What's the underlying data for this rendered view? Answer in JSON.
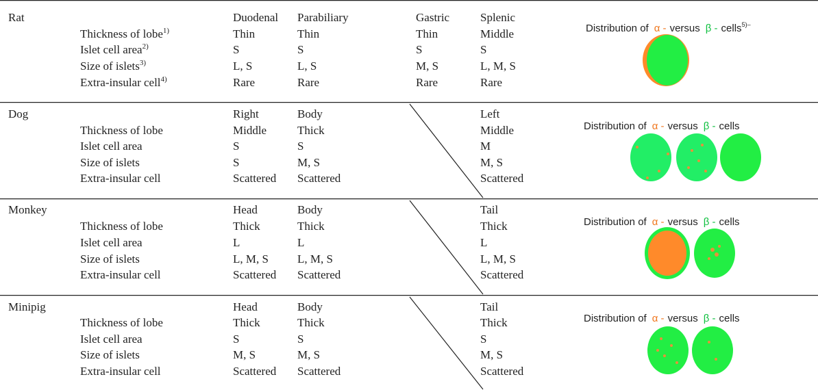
{
  "sections": [
    {
      "species": "Rat",
      "lobes": [
        "Duodenal",
        "Parabiliary",
        "Gastric",
        "Splenic"
      ],
      "rows": [
        {
          "label": "Thickness of lobe",
          "note": "1)",
          "values": [
            "Thin",
            "Thin",
            "Thin",
            "Middle"
          ]
        },
        {
          "label": "Islet cell area",
          "note": "2)",
          "values": [
            "S",
            "S",
            "S",
            "S"
          ]
        },
        {
          "label": "Size of islets",
          "note": "3)",
          "values": [
            "L, S",
            "L, S",
            "M, S",
            "L, M, S"
          ]
        },
        {
          "label": "Extra-insular cell",
          "note": "4)",
          "values": [
            "Rare",
            "Rare",
            "Rare",
            "Rare"
          ]
        }
      ],
      "caption": {
        "lead": "Distribution of",
        "alpha": "α -",
        "mid": "versus",
        "beta": "β -",
        "tail": "cells",
        "note": "5)–"
      }
    },
    {
      "species": "Dog",
      "lobes": [
        "Right",
        "Body",
        null,
        "Left"
      ],
      "rows": [
        {
          "label": "Thickness of lobe",
          "values": [
            "Middle",
            "Thick",
            null,
            "Middle"
          ]
        },
        {
          "label": "Islet cell area",
          "values": [
            "S",
            "S",
            null,
            "M"
          ]
        },
        {
          "label": "Size of islets",
          "values": [
            "S",
            "M, S",
            null,
            "M, S"
          ]
        },
        {
          "label": "Extra-insular cell",
          "values": [
            "Scattered",
            "Scattered",
            null,
            "Scattered"
          ]
        }
      ],
      "caption": {
        "lead": "Distribution of",
        "alpha": "α -",
        "mid": "versus",
        "beta": "β -",
        "tail": "cells"
      }
    },
    {
      "species": "Monkey",
      "lobes": [
        "Head",
        "Body",
        null,
        "Tail"
      ],
      "rows": [
        {
          "label": "Thickness of lobe",
          "values": [
            "Thick",
            "Thick",
            null,
            "Thick"
          ]
        },
        {
          "label": "Islet cell area",
          "values": [
            "L",
            "L",
            null,
            "L"
          ]
        },
        {
          "label": "Size of islets",
          "values": [
            "L, M, S",
            "L, M, S",
            null,
            "L, M, S"
          ]
        },
        {
          "label": "Extra-insular cell",
          "values": [
            "Scattered",
            "Scattered",
            null,
            "Scattered"
          ]
        }
      ],
      "caption": {
        "lead": "Distribution of",
        "alpha": "α -",
        "mid": "versus",
        "beta": "β -",
        "tail": "cells"
      }
    },
    {
      "species": "Minipig",
      "lobes": [
        "Head",
        "Body",
        null,
        "Tail"
      ],
      "rows": [
        {
          "label": "Thickness of lobe",
          "values": [
            "Thick",
            "Thick",
            null,
            "Thick"
          ]
        },
        {
          "label": "Islet cell area",
          "values": [
            "S",
            "S",
            null,
            "S"
          ]
        },
        {
          "label": "Size of islets",
          "values": [
            "M, S",
            "M, S",
            null,
            "M, S"
          ]
        },
        {
          "label": "Extra-insular cell",
          "values": [
            "Scattered",
            "Scattered",
            null,
            "Scattered"
          ]
        }
      ],
      "caption": {
        "lead": "Distribution of",
        "alpha": "α -",
        "mid": "versus",
        "beta": "β -",
        "tail": "cells"
      }
    }
  ]
}
